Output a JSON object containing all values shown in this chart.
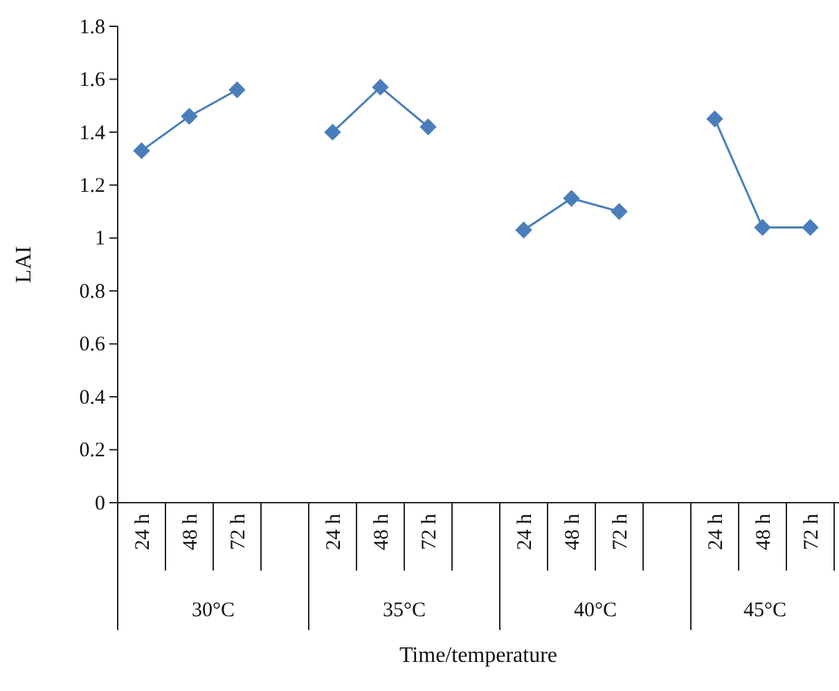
{
  "chart_data": {
    "type": "line",
    "xlabel": "Time/temperature",
    "ylabel": "LAI",
    "categories": [
      "24 h",
      "48 h",
      "72 h",
      null,
      "24 h",
      "48 h",
      "72 h",
      null,
      "24 h",
      "48 h",
      "72 h",
      null,
      "24 h",
      "48 h",
      "72 h"
    ],
    "series": [
      {
        "color": "#4a7ebb",
        "values": [
          1.33,
          1.46,
          1.56,
          null,
          1.4,
          1.57,
          1.42,
          null,
          1.03,
          1.15,
          1.1,
          null,
          1.45,
          1.04,
          1.04
        ]
      }
    ],
    "annotations": [
      "30°C",
      "35°C",
      "40°C",
      "45°C"
    ],
    "ylim": [
      0,
      1.8
    ],
    "yticks": [
      0,
      0.2,
      0.4,
      0.6,
      0.8,
      1,
      1.2,
      1.4,
      1.6,
      1.8
    ],
    "grid": false,
    "marker": "diamond",
    "line_style": "solid"
  }
}
